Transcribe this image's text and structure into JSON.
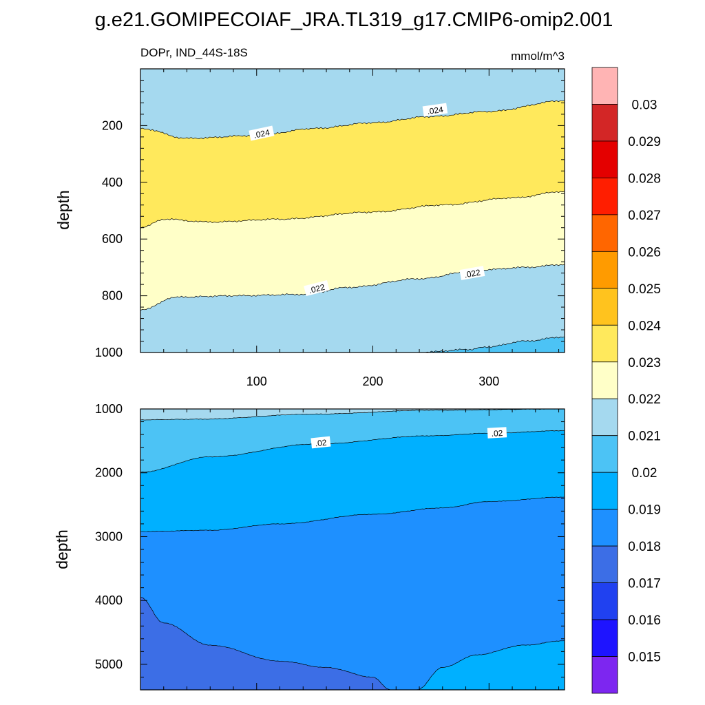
{
  "chart_data": {
    "type": "contour",
    "title": "g.e21.GOMIPECOIAF_JRA.TL319_g17.CMIP6-omip2.001",
    "variable_label": "DOPr, IND_44S-18S",
    "units": "mmol/m^3",
    "panels": [
      {
        "name": "upper",
        "ylabel": "depth",
        "x_range": [
          0,
          365
        ],
        "y_range": [
          0,
          1000
        ],
        "x_ticks": [
          "100",
          "200",
          "300"
        ],
        "y_ticks": [
          "200",
          "400",
          "600",
          "800",
          "1000"
        ],
        "contour_labels": [
          ".024",
          ".024",
          ".022",
          ".022"
        ],
        "contours": [
          {
            "level": 0.024,
            "x": [
              0,
              40,
              100,
              150,
              200,
              250,
              300,
              365
            ],
            "y": [
              210,
              245,
              235,
              210,
              190,
              168,
              150,
              112
            ]
          },
          {
            "level": 0.023,
            "x": [
              0,
              20,
              60,
              120,
              200,
              260,
              320,
              365
            ],
            "y": [
              560,
              530,
              540,
              530,
              505,
              480,
              455,
              432
            ]
          },
          {
            "level": 0.022,
            "x": [
              0,
              30,
              80,
              140,
              180,
              240,
              290,
              330,
              365
            ],
            "y": [
              850,
              805,
              800,
              795,
              770,
              740,
              710,
              700,
              690
            ]
          },
          {
            "level": 0.021,
            "x": [
              240,
              280,
              300,
              330,
              365
            ],
            "y": [
              1000,
              990,
              980,
              960,
              945
            ]
          }
        ]
      },
      {
        "name": "lower",
        "ylabel": "depth",
        "x_range": [
          0,
          365
        ],
        "y_range": [
          1000,
          5400
        ],
        "y_ticks": [
          "1000",
          "2000",
          "3000",
          "4000",
          "5000"
        ],
        "contour_labels": [
          ".02",
          ".02"
        ],
        "contours": [
          {
            "level": 0.021,
            "x": [
              0,
              50,
              150,
              250,
              365
            ],
            "y": [
              1170,
              1160,
              1080,
              1020,
              1000
            ]
          },
          {
            "level": 0.02,
            "x": [
              0,
              60,
              150,
              250,
              300,
              365
            ],
            "y": [
              1990,
              1750,
              1550,
              1420,
              1380,
              1340
            ]
          },
          {
            "level": 0.019,
            "x": [
              0,
              60,
              120,
              200,
              260,
              300,
              365
            ],
            "y": [
              2920,
              2900,
              2800,
              2650,
              2550,
              2450,
              2380
            ]
          },
          {
            "level": 0.018,
            "x": [
              0,
              20,
              60,
              120,
              160,
              200,
              215
            ],
            "y": [
              3950,
              4350,
              4700,
              4950,
              5050,
              5200,
              5400
            ]
          },
          {
            "level": 0.019,
            "x": [
              238,
              260,
              290,
              330,
              365
            ],
            "y": [
              5400,
              5050,
              4850,
              4700,
              4630
            ]
          }
        ]
      }
    ],
    "colorbar": {
      "labels": [
        "0.03",
        "0.029",
        "0.028",
        "0.027",
        "0.026",
        "0.025",
        "0.024",
        "0.023",
        "0.022",
        "0.021",
        "0.02",
        "0.019",
        "0.018",
        "0.017",
        "0.016",
        "0.015"
      ],
      "colors": [
        "#FFB4B4",
        "#D32626",
        "#E40000",
        "#FF1E00",
        "#FF6600",
        "#FF9B00",
        "#FFC31E",
        "#FFE95C",
        "#FFFFC8",
        "#A5D9EF",
        "#4CC3F5",
        "#00B0FF",
        "#1E90FF",
        "#3C6EE6",
        "#2041F0",
        "#1E14FF",
        "#7D26F0"
      ]
    }
  },
  "palette": {
    "p024": "#FFC31E",
    "p023": "#FFE95C",
    "p022": "#FFFFC8",
    "p021": "#A5D9EF",
    "p020": "#4CC3F5",
    "p019": "#00B0FF",
    "p018": "#1E90FF",
    "p017": "#3C6EE6"
  }
}
